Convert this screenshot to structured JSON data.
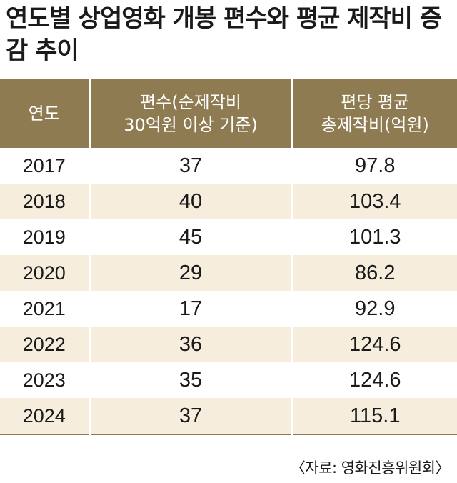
{
  "title": "연도별 상업영화 개봉 편수와 평균 제작비 증감 추이",
  "source": "〈자료: 영화진흥위원회〉",
  "colors": {
    "header": "#8f7b51",
    "stripe": "#f6eddd"
  },
  "chart_data": {
    "type": "table",
    "title": "연도별 상업영화 개봉 편수와 평균 제작비 증감 추이",
    "columns": [
      {
        "lines": [
          "연도"
        ]
      },
      {
        "lines": [
          "편수(순제작비",
          "30억원 이상 기준)"
        ]
      },
      {
        "lines": [
          "편당 평균",
          "총제작비(억원)"
        ]
      }
    ],
    "rows": [
      [
        "2017",
        "37",
        "97.8"
      ],
      [
        "2018",
        "40",
        "103.4"
      ],
      [
        "2019",
        "45",
        "101.3"
      ],
      [
        "2020",
        "29",
        "86.2"
      ],
      [
        "2021",
        "17",
        "92.9"
      ],
      [
        "2022",
        "36",
        "124.6"
      ],
      [
        "2023",
        "35",
        "124.6"
      ],
      [
        "2024",
        "37",
        "115.1"
      ]
    ]
  }
}
